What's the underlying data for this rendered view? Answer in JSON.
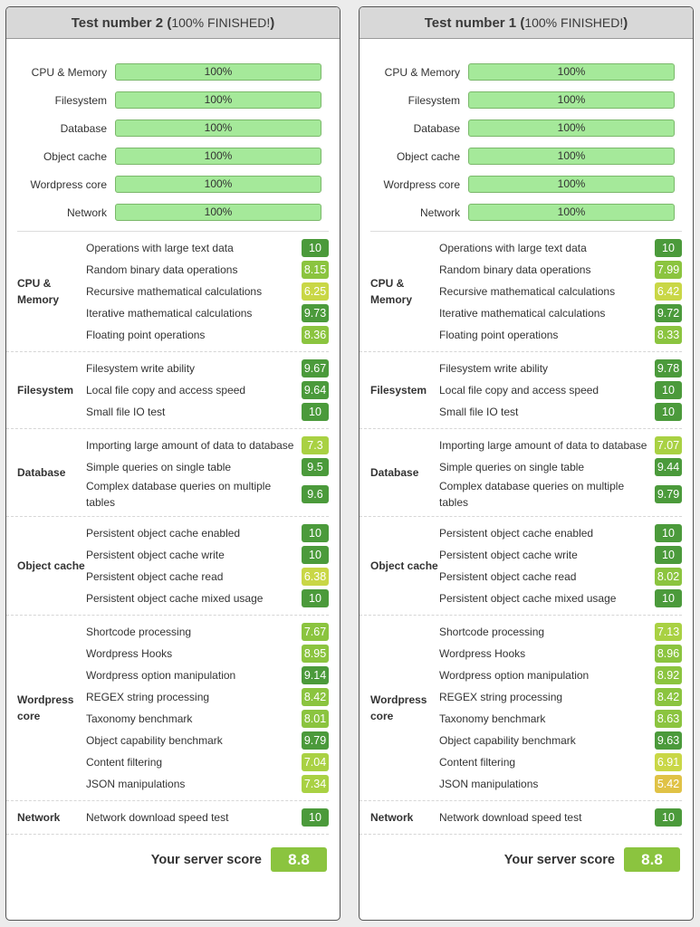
{
  "tests": [
    {
      "title": "Test number 2",
      "status": "100% FINISHED!",
      "progress": [
        {
          "label": "CPU & Memory",
          "value": "100%"
        },
        {
          "label": "Filesystem",
          "value": "100%"
        },
        {
          "label": "Database",
          "value": "100%"
        },
        {
          "label": "Object cache",
          "value": "100%"
        },
        {
          "label": "Wordpress core",
          "value": "100%"
        },
        {
          "label": "Network",
          "value": "100%"
        }
      ],
      "sections": [
        {
          "label": "CPU & Memory",
          "items": [
            {
              "label": "Operations with large text data",
              "score": "10"
            },
            {
              "label": "Random binary data operations",
              "score": "8.15"
            },
            {
              "label": "Recursive mathematical calculations",
              "score": "6.25"
            },
            {
              "label": "Iterative mathematical calculations",
              "score": "9.73"
            },
            {
              "label": "Floating point operations",
              "score": "8.36"
            }
          ]
        },
        {
          "label": "Filesystem",
          "items": [
            {
              "label": "Filesystem write ability",
              "score": "9.67"
            },
            {
              "label": "Local file copy and access speed",
              "score": "9.64"
            },
            {
              "label": "Small file IO test",
              "score": "10"
            }
          ]
        },
        {
          "label": "Database",
          "items": [
            {
              "label": "Importing large amount of data to database",
              "score": "7.3"
            },
            {
              "label": "Simple queries on single table",
              "score": "9.5"
            },
            {
              "label": "Complex database queries on multiple tables",
              "score": "9.6"
            }
          ]
        },
        {
          "label": "Object cache",
          "items": [
            {
              "label": "Persistent object cache enabled",
              "score": "10"
            },
            {
              "label": "Persistent object cache write",
              "score": "10"
            },
            {
              "label": "Persistent object cache read",
              "score": "6.38"
            },
            {
              "label": "Persistent object cache mixed usage",
              "score": "10"
            }
          ]
        },
        {
          "label": "Wordpress core",
          "items": [
            {
              "label": "Shortcode processing",
              "score": "7.67"
            },
            {
              "label": "Wordpress Hooks",
              "score": "8.95"
            },
            {
              "label": "Wordpress option manipulation",
              "score": "9.14"
            },
            {
              "label": "REGEX string processing",
              "score": "8.42"
            },
            {
              "label": "Taxonomy benchmark",
              "score": "8.01"
            },
            {
              "label": "Object capability benchmark",
              "score": "9.79"
            },
            {
              "label": "Content filtering",
              "score": "7.04"
            },
            {
              "label": "JSON manipulations",
              "score": "7.34"
            }
          ]
        },
        {
          "label": "Network",
          "items": [
            {
              "label": "Network download speed test",
              "score": "10"
            }
          ]
        }
      ],
      "score_label": "Your server score",
      "score": "8.8"
    },
    {
      "title": "Test number 1",
      "status": "100% FINISHED!",
      "progress": [
        {
          "label": "CPU & Memory",
          "value": "100%"
        },
        {
          "label": "Filesystem",
          "value": "100%"
        },
        {
          "label": "Database",
          "value": "100%"
        },
        {
          "label": "Object cache",
          "value": "100%"
        },
        {
          "label": "Wordpress core",
          "value": "100%"
        },
        {
          "label": "Network",
          "value": "100%"
        }
      ],
      "sections": [
        {
          "label": "CPU & Memory",
          "items": [
            {
              "label": "Operations with large text data",
              "score": "10"
            },
            {
              "label": "Random binary data operations",
              "score": "7.99"
            },
            {
              "label": "Recursive mathematical calculations",
              "score": "6.42"
            },
            {
              "label": "Iterative mathematical calculations",
              "score": "9.72"
            },
            {
              "label": "Floating point operations",
              "score": "8.33"
            }
          ]
        },
        {
          "label": "Filesystem",
          "items": [
            {
              "label": "Filesystem write ability",
              "score": "9.78"
            },
            {
              "label": "Local file copy and access speed",
              "score": "10"
            },
            {
              "label": "Small file IO test",
              "score": "10"
            }
          ]
        },
        {
          "label": "Database",
          "items": [
            {
              "label": "Importing large amount of data to database",
              "score": "7.07"
            },
            {
              "label": "Simple queries on single table",
              "score": "9.44"
            },
            {
              "label": "Complex database queries on multiple tables",
              "score": "9.79"
            }
          ]
        },
        {
          "label": "Object cache",
          "items": [
            {
              "label": "Persistent object cache enabled",
              "score": "10"
            },
            {
              "label": "Persistent object cache write",
              "score": "10"
            },
            {
              "label": "Persistent object cache read",
              "score": "8.02"
            },
            {
              "label": "Persistent object cache mixed usage",
              "score": "10"
            }
          ]
        },
        {
          "label": "Wordpress core",
          "items": [
            {
              "label": "Shortcode processing",
              "score": "7.13"
            },
            {
              "label": "Wordpress Hooks",
              "score": "8.96"
            },
            {
              "label": "Wordpress option manipulation",
              "score": "8.92"
            },
            {
              "label": "REGEX string processing",
              "score": "8.42"
            },
            {
              "label": "Taxonomy benchmark",
              "score": "8.63"
            },
            {
              "label": "Object capability benchmark",
              "score": "9.63"
            },
            {
              "label": "Content filtering",
              "score": "6.91"
            },
            {
              "label": "JSON manipulations",
              "score": "5.42"
            }
          ]
        },
        {
          "label": "Network",
          "items": [
            {
              "label": "Network download speed test",
              "score": "10"
            }
          ]
        }
      ],
      "score_label": "Your server score",
      "score": "8.8"
    }
  ],
  "colors": {
    "excellent": "#4b9a3b",
    "good": "#8bc43f",
    "fair": "#a9d143",
    "average": "#c9d746",
    "poor": "#e0c246",
    "progress_fill": "#a5e99a"
  }
}
